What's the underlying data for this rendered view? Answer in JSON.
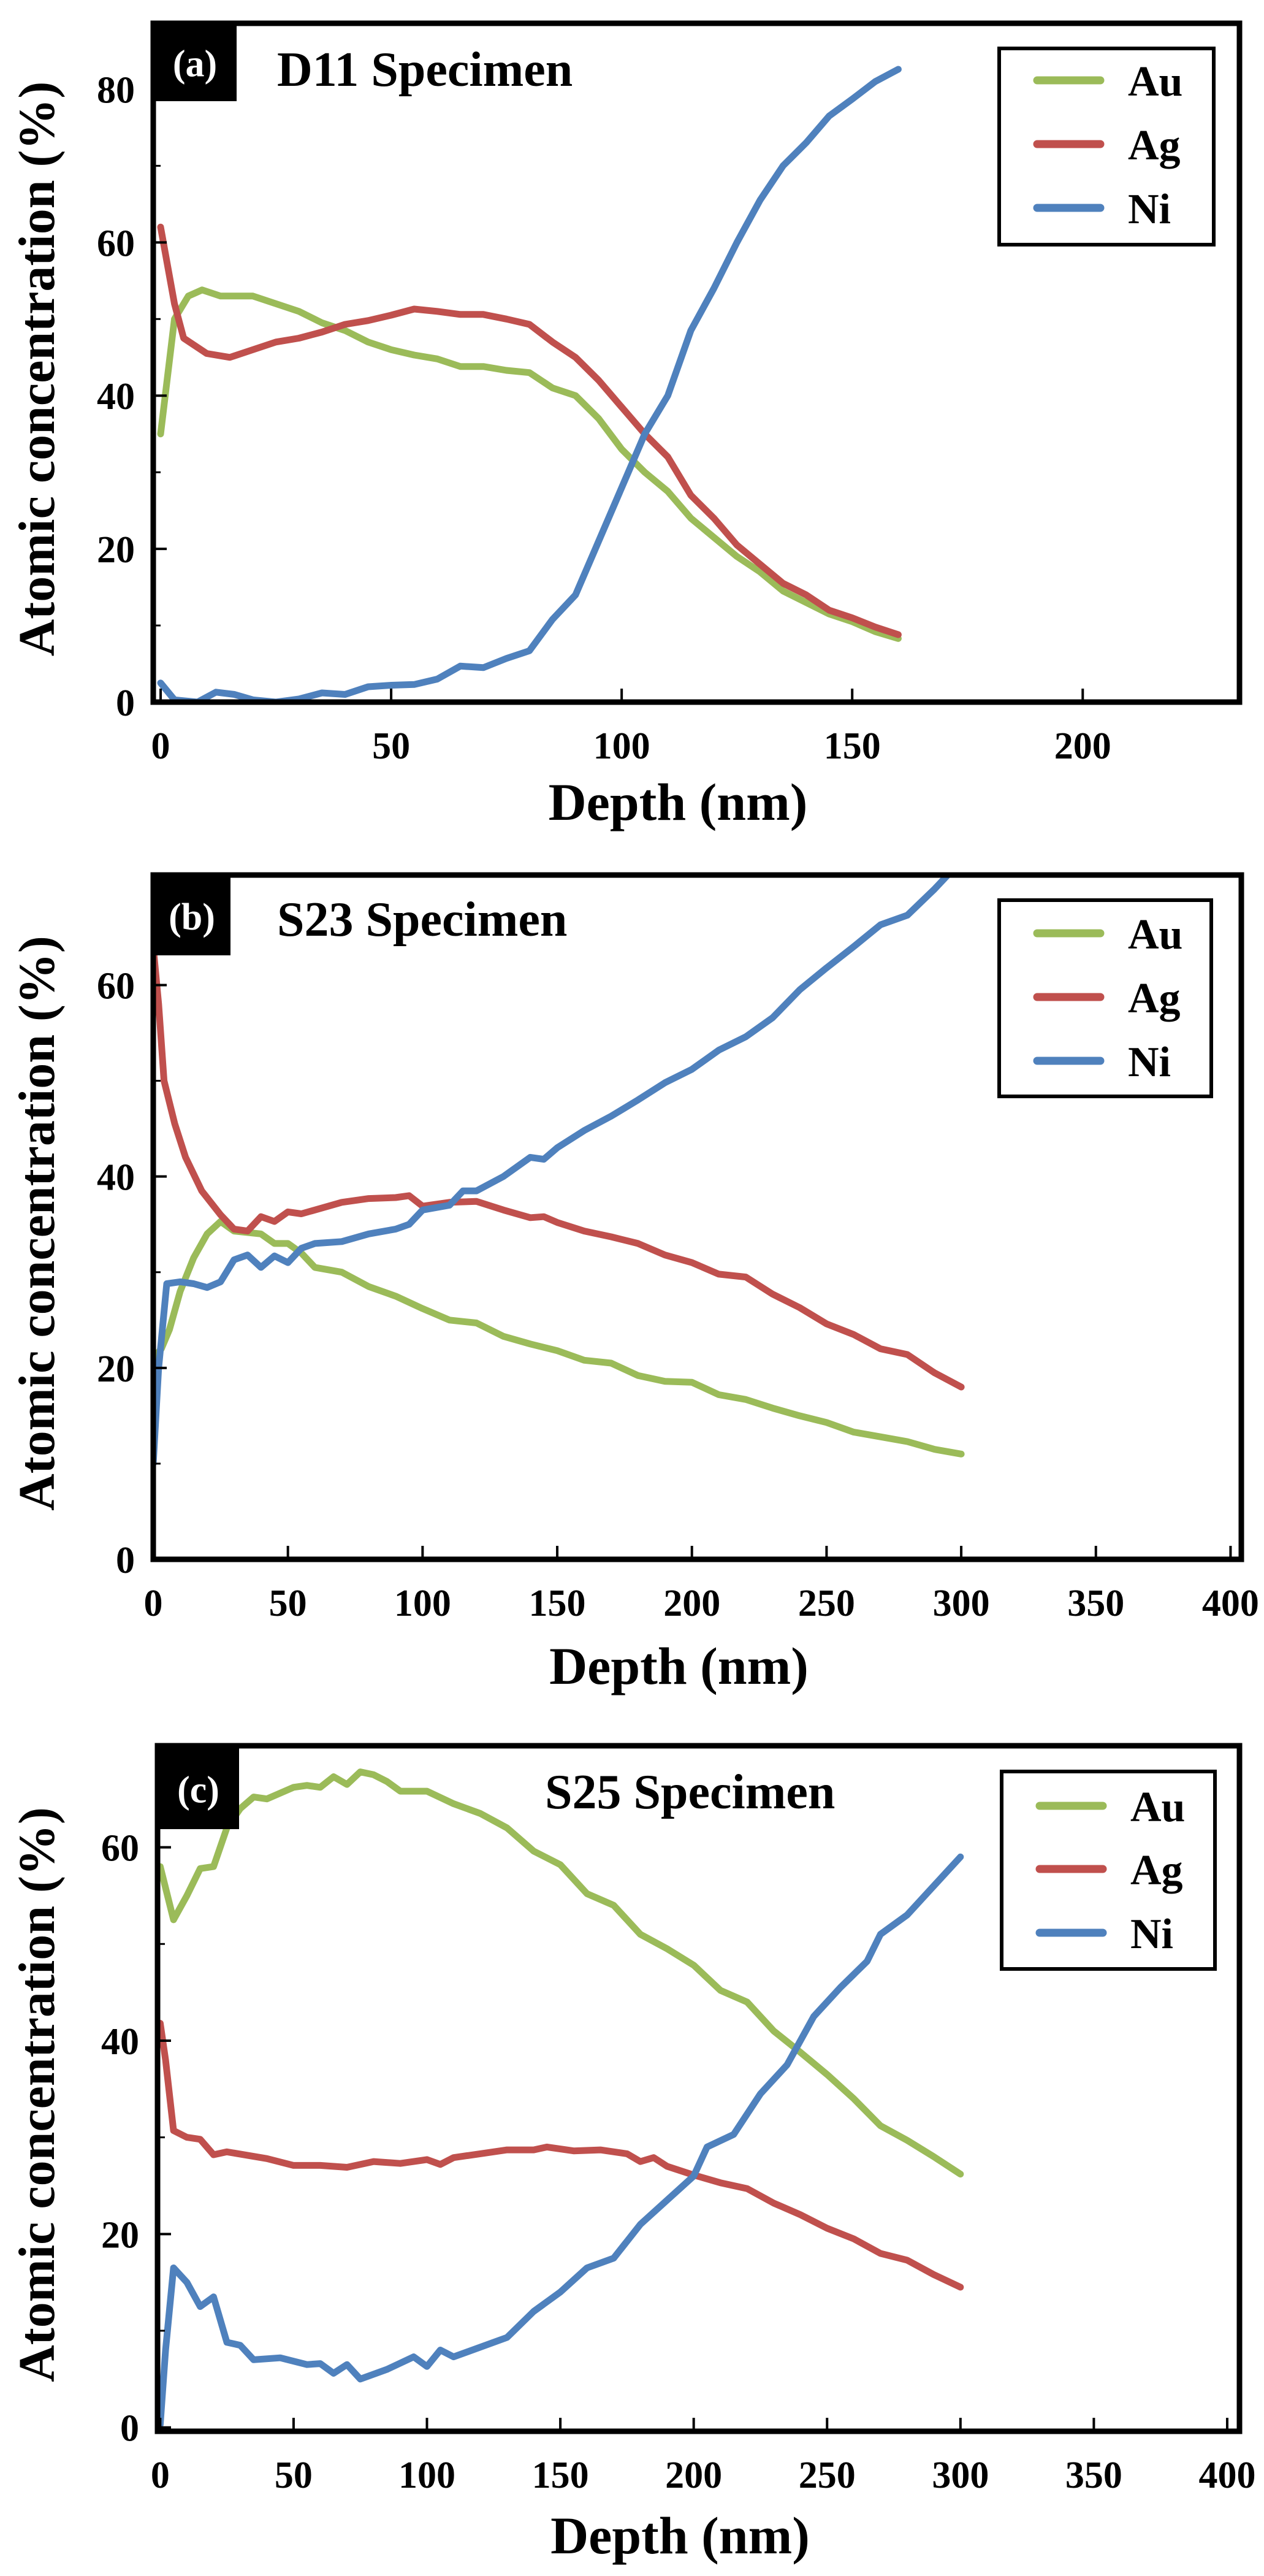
{
  "colors": {
    "Au": "#9bbb59",
    "Ag": "#c0504d",
    "Ni": "#4f81bd"
  },
  "chart_data": [
    {
      "type": "line",
      "panel_label": "(a)",
      "title": "D11 Specimen",
      "xlabel": "Depth (nm)",
      "ylabel": "Atomic concentration (%)",
      "xlim": [
        -1.6,
        234
      ],
      "ylim": [
        0,
        88.6
      ],
      "xticks": [
        0,
        50,
        100,
        150,
        200
      ],
      "yticks": [
        0,
        20,
        40,
        60,
        80
      ],
      "yminor": [
        10,
        30,
        50,
        70
      ],
      "legend": {
        "position": "top-right",
        "entries": [
          "Au",
          "Ag",
          "Ni"
        ]
      },
      "series": [
        {
          "name": "Au",
          "x": [
            0,
            3,
            6,
            9,
            13,
            20,
            25,
            30,
            35,
            40,
            45,
            50,
            55,
            60,
            65,
            70,
            75,
            80,
            85,
            90,
            95,
            100,
            105,
            110,
            115,
            120,
            125,
            130,
            135,
            140,
            145,
            150,
            155,
            160
          ],
          "y": [
            35,
            50,
            53,
            53.8,
            53,
            53,
            52,
            51,
            49.5,
            48.5,
            47,
            46,
            45.3,
            44.8,
            43.8,
            43.8,
            43.3,
            43,
            41,
            40,
            37,
            33,
            30,
            27.5,
            24,
            21.5,
            19,
            17,
            14.5,
            13,
            11.5,
            10.5,
            9.2,
            8.3
          ]
        },
        {
          "name": "Ag",
          "x": [
            0,
            3,
            5,
            10,
            15,
            20,
            25,
            30,
            35,
            40,
            45,
            50,
            55,
            60,
            65,
            70,
            75,
            80,
            85,
            90,
            95,
            100,
            105,
            110,
            115,
            120,
            125,
            130,
            135,
            140,
            145,
            150,
            155,
            160
          ],
          "y": [
            62,
            52,
            47.5,
            45.5,
            45,
            46,
            47,
            47.5,
            48.3,
            49.3,
            49.8,
            50.5,
            51.3,
            51,
            50.6,
            50.6,
            50,
            49.3,
            47,
            45,
            42,
            38.5,
            35,
            32,
            27,
            24,
            20.5,
            18,
            15.5,
            14,
            12,
            11,
            9.8,
            8.8
          ]
        },
        {
          "name": "Ni",
          "x": [
            0,
            3,
            8,
            12,
            16,
            20,
            25,
            30,
            35,
            40,
            45,
            50,
            55,
            60,
            65,
            70,
            75,
            80,
            85,
            90,
            95,
            100,
            105,
            110,
            115,
            120,
            125,
            130,
            135,
            140,
            145,
            150,
            155,
            160
          ],
          "y": [
            2.5,
            0.3,
            0,
            1.3,
            1,
            0.3,
            0,
            0.4,
            1.2,
            1,
            2,
            2.2,
            2.3,
            3,
            4.7,
            4.5,
            5.7,
            6.7,
            10.8,
            14,
            21,
            28,
            35,
            40,
            48.5,
            54,
            60,
            65.5,
            70,
            73,
            76.5,
            78.7,
            81,
            82.6
          ]
        }
      ]
    },
    {
      "type": "line",
      "panel_label": "(b)",
      "title": "S23 Specimen",
      "xlabel": "Depth (nm)",
      "ylabel": "Atomic concentration (%)",
      "xlim": [
        0,
        404
      ],
      "ylim": [
        0,
        71.5
      ],
      "xticks": [
        0,
        50,
        100,
        150,
        200,
        250,
        300,
        350,
        400
      ],
      "yticks": [
        0,
        20,
        40,
        60
      ],
      "yminor": [
        10,
        30,
        50,
        70
      ],
      "legend": {
        "position": "top-right",
        "entries": [
          "Au",
          "Ag",
          "Ni"
        ]
      },
      "series": [
        {
          "name": "Au",
          "x": [
            0,
            3,
            6,
            10,
            15,
            20,
            25,
            30,
            40,
            45,
            50,
            55,
            60,
            70,
            80,
            90,
            100,
            110,
            120,
            130,
            140,
            150,
            160,
            170,
            180,
            190,
            200,
            210,
            220,
            230,
            240,
            250,
            260,
            270,
            280,
            290,
            300
          ],
          "y": [
            21,
            22,
            24,
            28,
            31.5,
            34,
            35.3,
            34.3,
            34,
            33,
            33,
            32,
            30.5,
            30,
            28.5,
            27.5,
            26.2,
            25,
            24.7,
            23.3,
            22.5,
            21.8,
            20.8,
            20.5,
            19.2,
            18.6,
            18.5,
            17.2,
            16.7,
            15.8,
            15,
            14.3,
            13.3,
            12.8,
            12.3,
            11.5,
            11
          ]
        },
        {
          "name": "Ag",
          "x": [
            0,
            2,
            4,
            8,
            12,
            18,
            25,
            30,
            35,
            40,
            45,
            50,
            55,
            60,
            70,
            80,
            90,
            95,
            100,
            110,
            120,
            130,
            140,
            145,
            150,
            160,
            170,
            180,
            190,
            200,
            210,
            220,
            230,
            240,
            250,
            260,
            270,
            280,
            290,
            300
          ],
          "y": [
            64,
            58,
            50,
            45.5,
            42,
            38.5,
            36,
            34.5,
            34.3,
            35.8,
            35.3,
            36.3,
            36.1,
            36.5,
            37.3,
            37.7,
            37.8,
            38,
            36.9,
            37.3,
            37.4,
            36.5,
            35.7,
            35.8,
            35.2,
            34.3,
            33.7,
            33,
            31.8,
            31,
            29.8,
            29.5,
            27.7,
            26.3,
            24.6,
            23.5,
            22,
            21.4,
            19.5,
            18
          ]
        },
        {
          "name": "Ni",
          "x": [
            0,
            2,
            5,
            10,
            15,
            20,
            25,
            30,
            35,
            40,
            45,
            50,
            55,
            60,
            70,
            80,
            90,
            95,
            100,
            110,
            115,
            120,
            130,
            140,
            145,
            150,
            160,
            170,
            180,
            190,
            200,
            210,
            220,
            230,
            240,
            250,
            260,
            270,
            280,
            290,
            295
          ],
          "y": [
            10,
            20,
            28.8,
            29,
            28.8,
            28.4,
            29,
            31.3,
            31.8,
            30.5,
            31.7,
            31,
            32.5,
            33,
            33.2,
            34,
            34.5,
            35,
            36.5,
            37,
            38.5,
            38.5,
            40,
            42,
            41.8,
            43,
            44.8,
            46.3,
            48,
            49.8,
            51.2,
            53.2,
            54.6,
            56.6,
            59.5,
            61.8,
            64,
            66.3,
            67.3,
            70,
            71.5
          ]
        }
      ]
    },
    {
      "type": "line",
      "panel_label": "(c)",
      "title": "S25 Specimen",
      "xlabel": "Depth (nm)",
      "ylabel": "Atomic concentration (%)",
      "xlim": [
        -1,
        404.6
      ],
      "ylim": [
        -0.4,
        70.5
      ],
      "xticks": [
        0,
        50,
        100,
        150,
        200,
        250,
        300,
        350,
        400
      ],
      "yticks": [
        0,
        20,
        40,
        60
      ],
      "yminor": [
        10,
        30,
        50
      ],
      "legend": {
        "position": "top-right",
        "entries": [
          "Au",
          "Ag",
          "Ni"
        ]
      },
      "series": [
        {
          "name": "Au",
          "x": [
            0,
            5,
            10,
            15,
            20,
            25,
            30,
            35,
            40,
            50,
            55,
            60,
            65,
            70,
            75,
            80,
            85,
            90,
            100,
            110,
            120,
            130,
            140,
            150,
            160,
            170,
            180,
            190,
            200,
            210,
            220,
            230,
            240,
            250,
            260,
            270,
            280,
            290,
            300
          ],
          "y": [
            58,
            52.5,
            55,
            57.8,
            58,
            62,
            64,
            65.2,
            65,
            66.2,
            66.4,
            66.2,
            67.3,
            66.5,
            67.8,
            67.5,
            66.8,
            65.8,
            65.8,
            64.5,
            63.5,
            62,
            59.6,
            58.2,
            55.2,
            54,
            51,
            49.5,
            47.8,
            45.2,
            44,
            41,
            38.8,
            36.5,
            34,
            31.2,
            29.7,
            28,
            26.2
          ]
        },
        {
          "name": "Ag",
          "x": [
            0,
            2,
            5,
            10,
            15,
            20,
            25,
            40,
            50,
            60,
            70,
            80,
            90,
            100,
            105,
            110,
            120,
            130,
            140,
            145,
            155,
            165,
            175,
            180,
            185,
            190,
            200,
            210,
            220,
            230,
            240,
            250,
            260,
            270,
            280,
            290,
            300
          ],
          "y": [
            41.8,
            38,
            30.7,
            30,
            29.8,
            28.2,
            28.5,
            27.8,
            27.1,
            27.1,
            26.9,
            27.5,
            27.3,
            27.7,
            27.2,
            27.9,
            28.3,
            28.7,
            28.7,
            29,
            28.6,
            28.7,
            28.3,
            27.5,
            27.9,
            27,
            26.1,
            25.3,
            24.7,
            23.2,
            22,
            20.6,
            19.5,
            18,
            17.3,
            15.8,
            14.5
          ]
        },
        {
          "name": "Ni",
          "x": [
            0,
            2,
            5,
            10,
            15,
            20,
            25,
            30,
            35,
            45,
            55,
            60,
            65,
            70,
            75,
            85,
            95,
            100,
            105,
            110,
            120,
            130,
            140,
            150,
            160,
            170,
            180,
            190,
            200,
            205,
            215,
            225,
            235,
            245,
            255,
            265,
            270,
            280,
            290,
            300
          ],
          "y": [
            0.3,
            8,
            16.5,
            15,
            12.5,
            13.5,
            8.8,
            8.5,
            7,
            7.2,
            6.5,
            6.6,
            5.6,
            6.5,
            5,
            6,
            7.3,
            6.3,
            8,
            7.3,
            8.3,
            9.3,
            12,
            14,
            16.5,
            17.5,
            21,
            23.5,
            26,
            29,
            30.3,
            34.5,
            37.5,
            42.5,
            45.5,
            48.2,
            51,
            53,
            56,
            59
          ]
        }
      ]
    }
  ]
}
